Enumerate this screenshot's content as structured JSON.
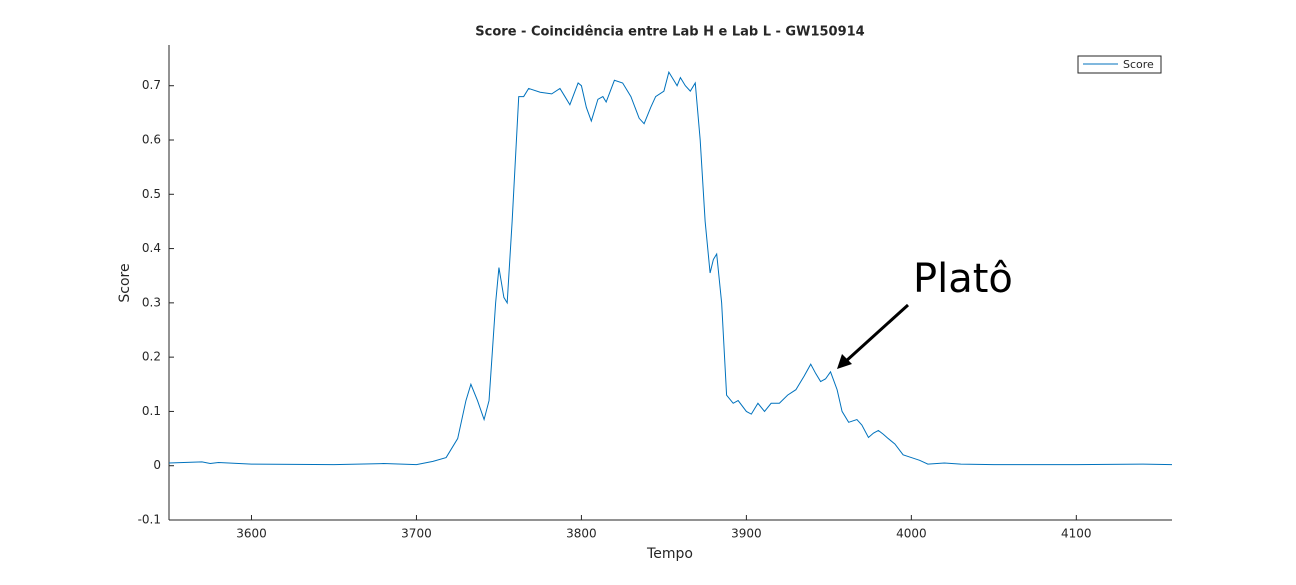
{
  "chart_data": {
    "type": "line",
    "title": "Score - Coincidência entre Lab H e Lab L - GW150914",
    "xlabel": "Tempo",
    "ylabel": "Score",
    "annotation": "Platô",
    "legend_position": "upper right",
    "x": [
      3550,
      3570,
      3575,
      3580,
      3600,
      3650,
      3680,
      3700,
      3710,
      3718,
      3725,
      3730,
      3733,
      3737,
      3741,
      3744,
      3748,
      3750,
      3753,
      3755,
      3758,
      3762,
      3765,
      3768,
      3775,
      3782,
      3787,
      3790,
      3793,
      3798,
      3800,
      3803,
      3806,
      3810,
      3813,
      3815,
      3820,
      3825,
      3830,
      3835,
      3838,
      3842,
      3845,
      3850,
      3853,
      3856,
      3858,
      3860,
      3863,
      3866,
      3869,
      3872,
      3875,
      3878,
      3880,
      3882,
      3885,
      3888,
      3892,
      3895,
      3900,
      3903,
      3907,
      3911,
      3915,
      3920,
      3925,
      3930,
      3935,
      3939,
      3942,
      3945,
      3948,
      3951,
      3955,
      3958,
      3962,
      3967,
      3970,
      3974,
      3977,
      3980,
      3983,
      3986,
      3990,
      3995,
      4000,
      4005,
      4010,
      4020,
      4030,
      4050,
      4080,
      4100,
      4140,
      4158
    ],
    "series": [
      {
        "name": "Score",
        "color": "#0072bd",
        "values": [
          0.005,
          0.007,
          0.004,
          0.006,
          0.003,
          0.002,
          0.004,
          0.002,
          0.008,
          0.015,
          0.05,
          0.12,
          0.15,
          0.12,
          0.085,
          0.12,
          0.3,
          0.365,
          0.31,
          0.3,
          0.45,
          0.68,
          0.68,
          0.695,
          0.688,
          0.685,
          0.695,
          0.68,
          0.665,
          0.705,
          0.7,
          0.66,
          0.635,
          0.675,
          0.68,
          0.67,
          0.71,
          0.705,
          0.68,
          0.64,
          0.63,
          0.66,
          0.68,
          0.69,
          0.725,
          0.71,
          0.7,
          0.715,
          0.7,
          0.69,
          0.705,
          0.6,
          0.45,
          0.355,
          0.38,
          0.39,
          0.3,
          0.13,
          0.115,
          0.12,
          0.1,
          0.095,
          0.115,
          0.1,
          0.115,
          0.115,
          0.13,
          0.14,
          0.165,
          0.187,
          0.17,
          0.155,
          0.16,
          0.173,
          0.14,
          0.1,
          0.08,
          0.085,
          0.075,
          0.052,
          0.06,
          0.065,
          0.058,
          0.05,
          0.04,
          0.02,
          0.015,
          0.01,
          0.003,
          0.005,
          0.003,
          0.002,
          0.002,
          0.002,
          0.003,
          0.002
        ]
      }
    ],
    "xlim": [
      3550,
      4158
    ],
    "xticks": [
      3600,
      3700,
      3800,
      3900,
      4000,
      4100
    ],
    "ylim": [
      -0.1,
      0.775
    ],
    "yticks": [
      -0.1,
      0,
      0.1,
      0.2,
      0.3,
      0.4,
      0.5,
      0.6,
      0.7
    ]
  }
}
